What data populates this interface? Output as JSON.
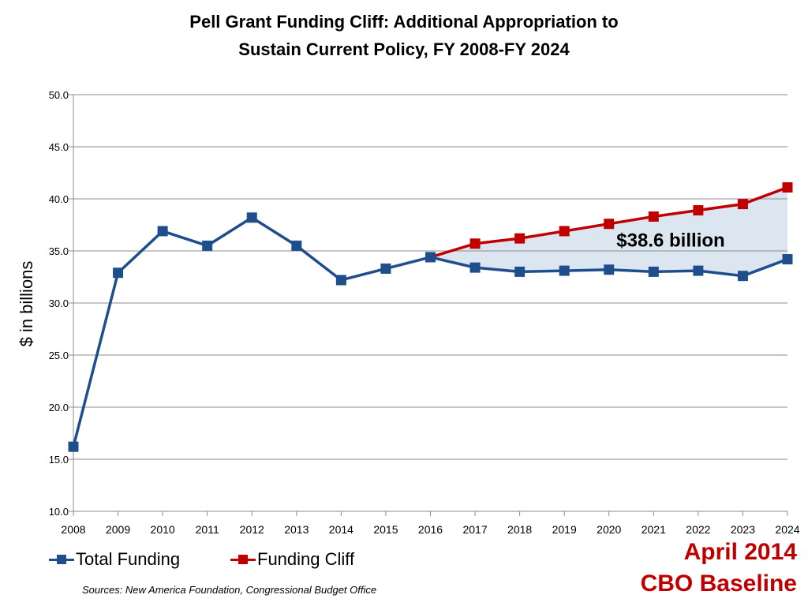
{
  "chart_data": {
    "type": "line",
    "title_line1": "Pell Grant Funding Cliff: Additional Appropriation to",
    "title_line2": "Sustain Current Policy, FY 2008-FY 2024",
    "ylabel": "$ in billions",
    "xlabel": "",
    "ylim": [
      10.0,
      50.0
    ],
    "y_ticks": [
      "50.0",
      "45.0",
      "40.0",
      "35.0",
      "30.0",
      "25.0",
      "20.0",
      "15.0",
      "10.0"
    ],
    "grid": true,
    "categories": [
      "2008",
      "2009",
      "2010",
      "2011",
      "2012",
      "2013",
      "2014",
      "2015",
      "2016",
      "2017",
      "2018",
      "2019",
      "2020",
      "2021",
      "2022",
      "2023",
      "2024"
    ],
    "series": [
      {
        "name": "Total Funding",
        "color": "#1f4e8c",
        "values": [
          16.2,
          32.9,
          36.9,
          35.5,
          38.2,
          35.5,
          32.2,
          33.3,
          34.4,
          33.4,
          33.0,
          33.1,
          33.2,
          33.0,
          33.1,
          32.6,
          34.2
        ]
      },
      {
        "name": "Funding Cliff",
        "color": "#c00000",
        "values": [
          null,
          null,
          null,
          null,
          null,
          null,
          null,
          null,
          34.4,
          35.7,
          36.2,
          36.9,
          37.6,
          38.3,
          38.9,
          39.5,
          41.1
        ]
      }
    ],
    "shaded_gap_color": "#dce6f1",
    "annotation": "$38.6 billion",
    "legend_position": "bottom-left"
  },
  "footer": {
    "source": "Sources: New America Foundation, Congressional Budget Office",
    "stamp_line1": "April 2014",
    "stamp_line2": "CBO Baseline"
  }
}
